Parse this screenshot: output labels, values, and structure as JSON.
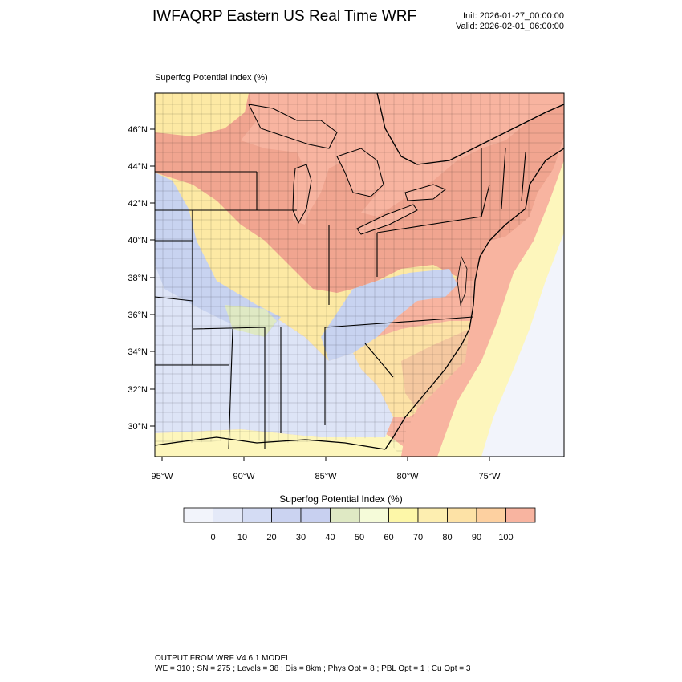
{
  "header": {
    "title": "IWFAQRP Eastern US Real Time WRF",
    "init": "Init: 2026-01-27_00:00:00",
    "valid": "Valid: 2026-02-01_06:00:00"
  },
  "map": {
    "field_label": "Superfog Potential Index   (%)",
    "lat_labels": [
      "46°N",
      "44°N",
      "42°N",
      "40°N",
      "38°N",
      "36°N",
      "34°N",
      "32°N",
      "30°N"
    ],
    "lon_labels": [
      "95°W",
      "90°W",
      "85°W",
      "80°W",
      "75°W"
    ],
    "colors": {
      "water_high": "#f8b4a0",
      "land_high": "#f1a590",
      "yellow": "#fde9a4",
      "pale_yellow": "#fdf6bc",
      "blue_light": "#dde4f6",
      "blue_mid": "#c8d3f0",
      "green_light": "#dfe9c4"
    }
  },
  "colorbar": {
    "title": "Superfog Potential Index  (%)",
    "ticks": [
      "0",
      "10",
      "20",
      "30",
      "40",
      "50",
      "60",
      "70",
      "80",
      "90",
      "100"
    ],
    "colors": [
      "#f2f4fb",
      "#e4e9f8",
      "#d4dcf4",
      "#cbd3f1",
      "#c8d0f0",
      "#dfe9c4",
      "#f5fbd9",
      "#fdf7a8",
      "#fdeeb0",
      "#fde2a6",
      "#fdd0a0",
      "#f8b4a0"
    ]
  },
  "footer": {
    "line1": "OUTPUT FROM WRF V4.6.1 MODEL",
    "line2": "WE = 310 ; SN = 275 ; Levels = 38 ; Dis = 8km ; Phys Opt = 8 ; PBL Opt = 1 ; Cu Opt = 3"
  }
}
